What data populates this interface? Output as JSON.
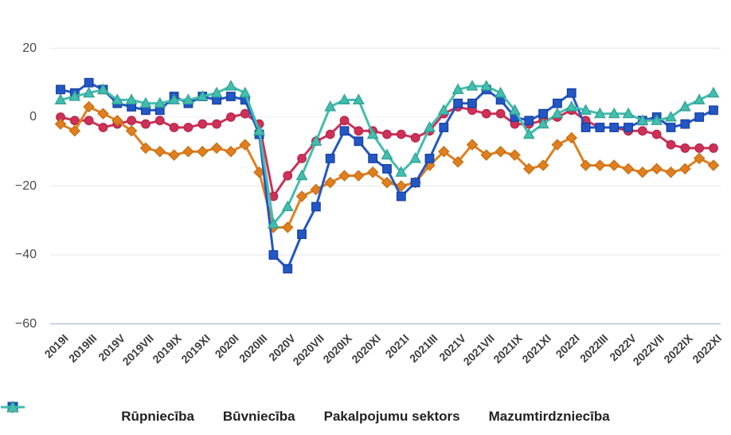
{
  "chart_data": {
    "type": "line",
    "title": "",
    "categories": [
      "2019I",
      "2019II",
      "2019III",
      "2019IV",
      "2019V",
      "2019VI",
      "2019VII",
      "2019VIII",
      "2019IX",
      "2019X",
      "2019XI",
      "2019XII",
      "2020I",
      "2020II",
      "2020III",
      "2020IV",
      "2020V",
      "2020VI",
      "2020VII",
      "2020VIII",
      "2020IX",
      "2020X",
      "2020XI",
      "2020XII",
      "2021I",
      "2021II",
      "2021III",
      "2021IV",
      "2021V",
      "2021VI",
      "2021VII",
      "2021VIII",
      "2021IX",
      "2021X",
      "2021XI",
      "2021XII",
      "2022I",
      "2022II",
      "2022III",
      "2022IV",
      "2022V",
      "2022VI",
      "2022VII",
      "2022VIII",
      "2022IX",
      "2022X",
      "2022XI"
    ],
    "x_tick_labels": [
      "2019I",
      "2019III",
      "2019V",
      "2019VII",
      "2019IX",
      "2019XI",
      "2020I",
      "2020III",
      "2020V",
      "2020VII",
      "2020IX",
      "2020XI",
      "2021I",
      "2021III",
      "2021V",
      "2021VII",
      "2021IX",
      "2021XI",
      "2022I",
      "2022III",
      "2022V",
      "2022VII",
      "2022IX",
      "2022XI"
    ],
    "tick_every": 2,
    "y_ticks": [
      20,
      0,
      -20,
      -40,
      -60
    ],
    "y_tick_labels": [
      "20",
      "0",
      "−20",
      "−40",
      "−60"
    ],
    "ylim": [
      -60,
      20
    ],
    "grid": "horizontal",
    "legend_position": "bottom",
    "series": [
      {
        "name": "Rūpniecība",
        "marker": "circle",
        "color": "#cd3157",
        "stroke": "#b5254a",
        "values": [
          0,
          -1,
          -1,
          -3,
          -2,
          -1,
          -2,
          -1,
          -3,
          -3,
          -2,
          -2,
          0,
          1,
          -2,
          -23,
          -17,
          -12,
          -7,
          -5,
          -1,
          -4,
          -4,
          -5,
          -5,
          -6,
          -4,
          1,
          3,
          2,
          1,
          1,
          -2,
          -2,
          -1,
          0,
          2,
          -1,
          -3,
          -3,
          -4,
          -4,
          -5,
          -8,
          -9,
          -9,
          -9
        ]
      },
      {
        "name": "Būvniecība",
        "marker": "diamond",
        "color": "#df7f1f",
        "stroke": "#c66d10",
        "values": [
          -2,
          -4,
          3,
          1,
          -1,
          -4,
          -9,
          -10,
          -11,
          -10,
          -10,
          -9,
          -10,
          -8,
          -16,
          -32,
          -32,
          -23,
          -21,
          -19,
          -17,
          -17,
          -16,
          -19,
          -20,
          -19,
          -14,
          -10,
          -13,
          -8,
          -11,
          -10,
          -11,
          -15,
          -14,
          -8,
          -6,
          -14,
          -14,
          -14,
          -15,
          -16,
          -15,
          -16,
          -15,
          -12,
          -14
        ]
      },
      {
        "name": "Pakalpojumu sektors",
        "marker": "square",
        "color": "#2257c4",
        "stroke": "#163f9e",
        "values": [
          8,
          7,
          10,
          8,
          4,
          3,
          2,
          2,
          6,
          4,
          6,
          5,
          6,
          5,
          -5,
          -40,
          -44,
          -34,
          -26,
          -12,
          -4,
          -7,
          -12,
          -15,
          -23,
          -19,
          -12,
          -3,
          4,
          4,
          8,
          5,
          0,
          -1,
          1,
          4,
          7,
          -3,
          -3,
          -3,
          -3,
          -1,
          0,
          -3,
          -2,
          0,
          2
        ]
      },
      {
        "name": "Mazumtirdzniecība",
        "marker": "triangle",
        "color": "#43bdae",
        "stroke": "#2da092",
        "values": [
          5,
          6,
          7,
          8,
          5,
          5,
          4,
          4,
          5,
          5,
          6,
          7,
          9,
          7,
          -4,
          -31,
          -26,
          -17,
          -7,
          3,
          5,
          5,
          -5,
          -11,
          -16,
          -12,
          -3,
          2,
          8,
          9,
          9,
          7,
          2,
          -5,
          -2,
          1,
          3,
          2,
          1,
          1,
          1,
          -1,
          -1,
          0,
          3,
          5,
          7
        ]
      }
    ]
  },
  "axis_style": {
    "grid_color": "#e6e6e6",
    "zero_grid_color": "#f2f2f2",
    "baseline_color": "#b7c4d9",
    "y_tick_text_color": "#4a4a4a",
    "x_tick_text_color": "#3d3d3d"
  },
  "legend": {
    "items": [
      {
        "label": "Rūpniecība"
      },
      {
        "label": "Būvniecība"
      },
      {
        "label": "Pakalpojumu sektors"
      },
      {
        "label": "Mazumtirdzniecība"
      }
    ]
  }
}
